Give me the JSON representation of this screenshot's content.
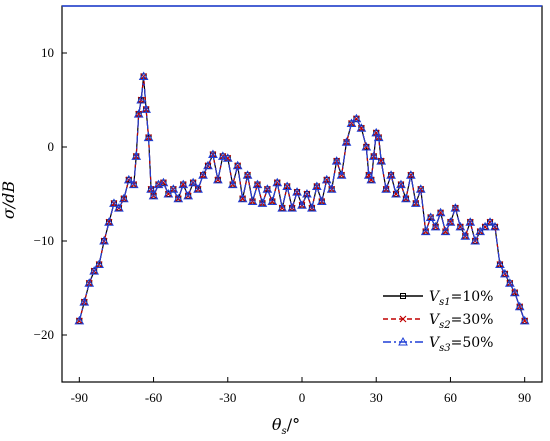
{
  "chart_data": {
    "type": "line",
    "title": "",
    "xlabel": "θ",
    "xlabel_sub": "s",
    "xlabel_unit": "/°",
    "ylabel": "σ/dB",
    "xlim": [
      -97,
      97
    ],
    "ylim": [
      -25,
      15
    ],
    "xticks": [
      -90,
      -60,
      -30,
      0,
      30,
      60,
      90
    ],
    "yticks": [
      -20,
      -10,
      0,
      10
    ],
    "xtick_labels": [
      "-90",
      "-60",
      "-30",
      "0",
      "30",
      "60",
      "90"
    ],
    "ytick_labels": [
      "−20",
      "−10",
      "0",
      "10"
    ],
    "grid": false,
    "legend_position": "bottom-right",
    "x": [
      -90,
      -88,
      -86,
      -84,
      -82,
      -80,
      -78,
      -76,
      -74,
      -72,
      -70,
      -68,
      -67,
      -66,
      -65,
      -64,
      -63,
      -62,
      -61,
      -60,
      -58,
      -56,
      -54,
      -52,
      -50,
      -48,
      -46,
      -44,
      -42,
      -40,
      -38,
      -36,
      -34,
      -32,
      -30,
      -28,
      -26,
      -24,
      -22,
      -20,
      -18,
      -16,
      -14,
      -12,
      -10,
      -8,
      -6,
      -4,
      -2,
      0,
      2,
      4,
      6,
      8,
      10,
      12,
      14,
      16,
      18,
      20,
      22,
      24,
      26,
      27,
      28,
      29,
      30,
      31,
      32,
      34,
      36,
      38,
      40,
      42,
      44,
      46,
      48,
      50,
      52,
      54,
      56,
      58,
      60,
      62,
      64,
      66,
      68,
      70,
      72,
      74,
      76,
      78,
      80,
      82,
      84,
      86,
      88,
      90
    ],
    "series": [
      {
        "name": "V_s1=10%",
        "label_main": "V",
        "label_sub": "s1",
        "label_tail": "=10%",
        "color": "#000000",
        "dash": "",
        "marker": "square",
        "values": [
          -18.5,
          -16.5,
          -14.5,
          -13.2,
          -12.5,
          -10.0,
          -8.0,
          -6.0,
          -6.5,
          -5.5,
          -3.5,
          -4.0,
          -1.0,
          3.5,
          5.0,
          7.5,
          4.0,
          1.0,
          -4.5,
          -5.2,
          -4.0,
          -3.8,
          -5.0,
          -4.5,
          -5.5,
          -4.0,
          -5.2,
          -3.8,
          -4.5,
          -3.0,
          -2.0,
          -0.8,
          -3.5,
          -1.0,
          -1.2,
          -4.0,
          -2.0,
          -5.5,
          -3.0,
          -5.8,
          -4.0,
          -6.0,
          -4.5,
          -5.8,
          -3.8,
          -6.5,
          -4.2,
          -6.5,
          -4.8,
          -6.2,
          -5.0,
          -6.5,
          -4.2,
          -5.8,
          -3.5,
          -4.5,
          -1.5,
          -3.0,
          0.5,
          2.5,
          3.0,
          2.0,
          0.0,
          -3.0,
          -3.5,
          -1.0,
          1.5,
          1.0,
          -1.5,
          -4.5,
          -3.0,
          -5.0,
          -4.0,
          -5.5,
          -3.0,
          -6.0,
          -4.5,
          -9.0,
          -7.5,
          -8.5,
          -7.0,
          -9.0,
          -8.0,
          -6.5,
          -8.5,
          -9.5,
          -8.0,
          -10.0,
          -9.0,
          -8.5,
          -8.0,
          -8.5,
          -12.5,
          -13.5,
          -14.5,
          -15.5,
          -17.0,
          -18.5
        ]
      },
      {
        "name": "V_s2=30%",
        "label_main": "V",
        "label_sub": "s2",
        "label_tail": "=30%",
        "color": "#c00000",
        "dash": "5,3",
        "marker": "x",
        "values": [
          -18.5,
          -16.5,
          -14.5,
          -13.2,
          -12.5,
          -10.0,
          -8.0,
          -6.0,
          -6.5,
          -5.5,
          -3.5,
          -4.0,
          -1.0,
          3.5,
          5.0,
          7.5,
          4.0,
          1.0,
          -4.5,
          -5.2,
          -4.0,
          -3.8,
          -5.0,
          -4.5,
          -5.5,
          -4.0,
          -5.2,
          -3.8,
          -4.5,
          -3.0,
          -2.0,
          -0.8,
          -3.5,
          -1.0,
          -1.2,
          -4.0,
          -2.0,
          -5.5,
          -3.0,
          -5.8,
          -4.0,
          -6.0,
          -4.5,
          -5.8,
          -3.8,
          -6.5,
          -4.2,
          -6.5,
          -4.8,
          -6.2,
          -5.0,
          -6.5,
          -4.2,
          -5.8,
          -3.5,
          -4.5,
          -1.5,
          -3.0,
          0.5,
          2.5,
          3.0,
          2.0,
          0.0,
          -3.0,
          -3.5,
          -1.0,
          1.5,
          1.0,
          -1.5,
          -4.5,
          -3.0,
          -5.0,
          -4.0,
          -5.5,
          -3.0,
          -6.0,
          -4.5,
          -9.0,
          -7.5,
          -8.5,
          -7.0,
          -9.0,
          -8.0,
          -6.5,
          -8.5,
          -9.5,
          -8.0,
          -10.0,
          -9.0,
          -8.5,
          -8.0,
          -8.5,
          -12.5,
          -13.5,
          -14.5,
          -15.5,
          -17.0,
          -18.5
        ]
      },
      {
        "name": "V_s3=50%",
        "label_main": "V",
        "label_sub": "s3",
        "label_tail": "=50%",
        "color": "#1f3fd6",
        "dash": "8,3,2,3",
        "marker": "triangle",
        "values": [
          -18.5,
          -16.5,
          -14.5,
          -13.2,
          -12.5,
          -10.0,
          -8.0,
          -6.0,
          -6.5,
          -5.5,
          -3.5,
          -4.0,
          -1.0,
          3.5,
          5.0,
          7.5,
          4.0,
          1.0,
          -4.5,
          -5.2,
          -4.0,
          -3.8,
          -5.0,
          -4.5,
          -5.5,
          -4.0,
          -5.2,
          -3.8,
          -4.5,
          -3.0,
          -2.0,
          -0.8,
          -3.5,
          -1.0,
          -1.2,
          -4.0,
          -2.0,
          -5.5,
          -3.0,
          -5.8,
          -4.0,
          -6.0,
          -4.5,
          -5.8,
          -3.8,
          -6.5,
          -4.2,
          -6.5,
          -4.8,
          -6.2,
          -5.0,
          -6.5,
          -4.2,
          -5.8,
          -3.5,
          -4.5,
          -1.5,
          -3.0,
          0.5,
          2.5,
          3.0,
          2.0,
          0.0,
          -3.0,
          -3.5,
          -1.0,
          1.5,
          1.0,
          -1.5,
          -4.5,
          -3.0,
          -5.0,
          -4.0,
          -5.5,
          -3.0,
          -6.0,
          -4.5,
          -9.0,
          -7.5,
          -8.5,
          -7.0,
          -9.0,
          -8.0,
          -6.5,
          -8.5,
          -9.5,
          -8.0,
          -10.0,
          -9.0,
          -8.5,
          -8.0,
          -8.5,
          -12.5,
          -13.5,
          -14.5,
          -15.5,
          -17.0,
          -18.5
        ]
      }
    ]
  }
}
